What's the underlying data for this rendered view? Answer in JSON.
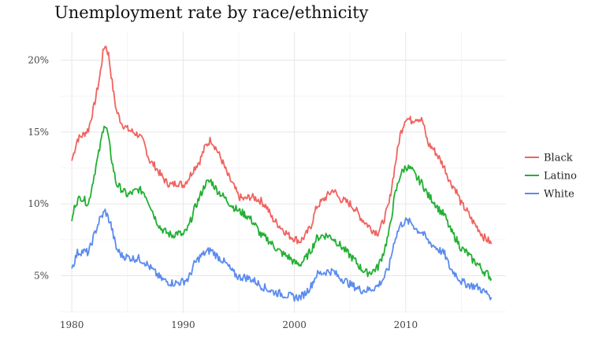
{
  "chart_data": {
    "type": "line",
    "title": "Unemployment rate by race/ethnicity",
    "xlabel": "",
    "ylabel": "",
    "xlim": [
      1979,
      2019
    ],
    "ylim": [
      2.4,
      22.0
    ],
    "x_ticks": [
      1980,
      1990,
      2000,
      2010
    ],
    "x_tick_labels": [
      "1980",
      "1990",
      "2000",
      "2010"
    ],
    "y_ticks": [
      5,
      10,
      15,
      20
    ],
    "y_tick_labels": [
      "5%",
      "10%",
      "15%",
      "20%"
    ],
    "grid": true,
    "legend_position": "right",
    "series": [
      {
        "name": "Black",
        "color": "#f0635f",
        "points": [
          [
            1980.0,
            13.0
          ],
          [
            1980.5,
            14.5
          ],
          [
            1981.0,
            14.8
          ],
          [
            1981.5,
            15.2
          ],
          [
            1982.0,
            16.8
          ],
          [
            1982.5,
            18.8
          ],
          [
            1982.8,
            20.5
          ],
          [
            1983.0,
            21.1
          ],
          [
            1983.3,
            20.4
          ],
          [
            1983.7,
            18.0
          ],
          [
            1984.0,
            16.5
          ],
          [
            1984.5,
            15.6
          ],
          [
            1985.0,
            15.2
          ],
          [
            1985.5,
            15.0
          ],
          [
            1986.0,
            14.8
          ],
          [
            1986.5,
            14.2
          ],
          [
            1987.0,
            13.0
          ],
          [
            1987.5,
            12.6
          ],
          [
            1988.0,
            12.0
          ],
          [
            1988.5,
            11.5
          ],
          [
            1989.0,
            11.3
          ],
          [
            1989.5,
            11.5
          ],
          [
            1990.0,
            11.3
          ],
          [
            1990.5,
            11.8
          ],
          [
            1991.0,
            12.5
          ],
          [
            1991.5,
            13.0
          ],
          [
            1992.0,
            14.0
          ],
          [
            1992.5,
            14.5
          ],
          [
            1993.0,
            13.8
          ],
          [
            1993.5,
            13.0
          ],
          [
            1994.0,
            12.0
          ],
          [
            1994.5,
            11.3
          ],
          [
            1995.0,
            10.5
          ],
          [
            1995.5,
            10.3
          ],
          [
            1996.0,
            10.5
          ],
          [
            1996.5,
            10.4
          ],
          [
            1997.0,
            10.2
          ],
          [
            1997.5,
            9.8
          ],
          [
            1998.0,
            9.0
          ],
          [
            1998.5,
            8.6
          ],
          [
            1999.0,
            8.2
          ],
          [
            1999.5,
            7.8
          ],
          [
            2000.0,
            7.6
          ],
          [
            2000.5,
            7.4
          ],
          [
            2001.0,
            7.8
          ],
          [
            2001.5,
            8.5
          ],
          [
            2002.0,
            9.8
          ],
          [
            2002.5,
            10.2
          ],
          [
            2003.0,
            10.6
          ],
          [
            2003.5,
            11.0
          ],
          [
            2004.0,
            10.4
          ],
          [
            2004.5,
            10.2
          ],
          [
            2005.0,
            10.0
          ],
          [
            2005.5,
            9.6
          ],
          [
            2006.0,
            9.0
          ],
          [
            2006.5,
            8.6
          ],
          [
            2007.0,
            8.2
          ],
          [
            2007.5,
            8.0
          ],
          [
            2008.0,
            8.8
          ],
          [
            2008.5,
            10.0
          ],
          [
            2009.0,
            12.5
          ],
          [
            2009.5,
            14.8
          ],
          [
            2010.0,
            16.0
          ],
          [
            2010.5,
            15.8
          ],
          [
            2011.0,
            16.0
          ],
          [
            2011.5,
            15.8
          ],
          [
            2012.0,
            14.2
          ],
          [
            2012.5,
            13.8
          ],
          [
            2013.0,
            13.2
          ],
          [
            2013.5,
            12.5
          ],
          [
            2014.0,
            11.5
          ],
          [
            2014.5,
            11.0
          ],
          [
            2015.0,
            10.0
          ],
          [
            2015.5,
            9.5
          ],
          [
            2016.0,
            8.8
          ],
          [
            2016.5,
            8.3
          ],
          [
            2017.0,
            7.7
          ],
          [
            2017.5,
            7.4
          ],
          [
            2017.7,
            7.2
          ]
        ]
      },
      {
        "name": "Latino",
        "color": "#22b033",
        "points": [
          [
            1980.0,
            8.8
          ],
          [
            1980.3,
            10.0
          ],
          [
            1980.8,
            10.5
          ],
          [
            1981.5,
            10.0
          ],
          [
            1982.0,
            12.0
          ],
          [
            1982.5,
            13.8
          ],
          [
            1982.9,
            15.6
          ],
          [
            1983.2,
            15.0
          ],
          [
            1983.6,
            13.0
          ],
          [
            1984.0,
            11.4
          ],
          [
            1984.5,
            11.0
          ],
          [
            1985.0,
            10.6
          ],
          [
            1985.5,
            10.8
          ],
          [
            1986.0,
            11.0
          ],
          [
            1986.5,
            10.8
          ],
          [
            1987.0,
            10.0
          ],
          [
            1987.5,
            9.0
          ],
          [
            1988.0,
            8.3
          ],
          [
            1988.5,
            8.0
          ],
          [
            1989.0,
            7.8
          ],
          [
            1989.5,
            8.0
          ],
          [
            1990.0,
            7.8
          ],
          [
            1990.5,
            8.4
          ],
          [
            1991.0,
            9.6
          ],
          [
            1991.5,
            10.5
          ],
          [
            1992.0,
            11.4
          ],
          [
            1992.5,
            11.6
          ],
          [
            1993.0,
            11.0
          ],
          [
            1993.5,
            10.6
          ],
          [
            1994.0,
            10.2
          ],
          [
            1994.5,
            9.8
          ],
          [
            1995.0,
            9.5
          ],
          [
            1995.5,
            9.3
          ],
          [
            1996.0,
            9.0
          ],
          [
            1996.5,
            8.5
          ],
          [
            1997.0,
            7.8
          ],
          [
            1997.5,
            7.6
          ],
          [
            1998.0,
            7.2
          ],
          [
            1998.5,
            6.8
          ],
          [
            1999.0,
            6.5
          ],
          [
            1999.5,
            6.3
          ],
          [
            2000.0,
            5.9
          ],
          [
            2000.5,
            5.8
          ],
          [
            2001.0,
            6.2
          ],
          [
            2001.5,
            6.8
          ],
          [
            2002.0,
            7.6
          ],
          [
            2002.5,
            7.8
          ],
          [
            2003.0,
            7.8
          ],
          [
            2003.5,
            7.6
          ],
          [
            2004.0,
            7.2
          ],
          [
            2004.5,
            6.8
          ],
          [
            2005.0,
            6.4
          ],
          [
            2005.5,
            6.0
          ],
          [
            2006.0,
            5.5
          ],
          [
            2006.5,
            5.2
          ],
          [
            2007.0,
            5.3
          ],
          [
            2007.5,
            5.6
          ],
          [
            2008.0,
            6.6
          ],
          [
            2008.5,
            8.0
          ],
          [
            2009.0,
            10.5
          ],
          [
            2009.5,
            12.0
          ],
          [
            2010.0,
            12.6
          ],
          [
            2010.5,
            12.4
          ],
          [
            2011.0,
            11.8
          ],
          [
            2011.5,
            11.4
          ],
          [
            2012.0,
            10.6
          ],
          [
            2012.5,
            10.2
          ],
          [
            2013.0,
            9.6
          ],
          [
            2013.5,
            9.2
          ],
          [
            2014.0,
            8.2
          ],
          [
            2014.5,
            7.6
          ],
          [
            2015.0,
            6.9
          ],
          [
            2015.5,
            6.6
          ],
          [
            2016.0,
            6.1
          ],
          [
            2016.5,
            5.8
          ],
          [
            2017.0,
            5.3
          ],
          [
            2017.4,
            5.1
          ],
          [
            2017.7,
            4.8
          ]
        ]
      },
      {
        "name": "White",
        "color": "#5a8bef",
        "points": [
          [
            1980.0,
            5.5
          ],
          [
            1980.5,
            6.6
          ],
          [
            1981.0,
            6.7
          ],
          [
            1981.5,
            6.6
          ],
          [
            1982.0,
            7.8
          ],
          [
            1982.5,
            8.9
          ],
          [
            1983.0,
            9.5
          ],
          [
            1983.5,
            8.6
          ],
          [
            1984.0,
            6.9
          ],
          [
            1984.5,
            6.4
          ],
          [
            1985.0,
            6.3
          ],
          [
            1985.5,
            6.2
          ],
          [
            1986.0,
            6.2
          ],
          [
            1986.5,
            6.0
          ],
          [
            1987.0,
            5.6
          ],
          [
            1987.5,
            5.2
          ],
          [
            1988.0,
            4.8
          ],
          [
            1988.5,
            4.6
          ],
          [
            1989.0,
            4.5
          ],
          [
            1989.5,
            4.5
          ],
          [
            1990.0,
            4.6
          ],
          [
            1990.5,
            4.8
          ],
          [
            1991.0,
            5.8
          ],
          [
            1991.5,
            6.3
          ],
          [
            1992.0,
            6.6
          ],
          [
            1992.5,
            6.8
          ],
          [
            1993.0,
            6.4
          ],
          [
            1993.5,
            6.1
          ],
          [
            1994.0,
            5.7
          ],
          [
            1994.5,
            5.2
          ],
          [
            1995.0,
            4.9
          ],
          [
            1995.5,
            4.9
          ],
          [
            1996.0,
            4.8
          ],
          [
            1996.5,
            4.6
          ],
          [
            1997.0,
            4.3
          ],
          [
            1997.5,
            4.1
          ],
          [
            1998.0,
            3.9
          ],
          [
            1998.5,
            3.8
          ],
          [
            1999.0,
            3.7
          ],
          [
            1999.5,
            3.6
          ],
          [
            2000.0,
            3.5
          ],
          [
            2000.5,
            3.5
          ],
          [
            2001.0,
            3.8
          ],
          [
            2001.5,
            4.3
          ],
          [
            2002.0,
            5.1
          ],
          [
            2002.5,
            5.2
          ],
          [
            2003.0,
            5.3
          ],
          [
            2003.5,
            5.3
          ],
          [
            2004.0,
            4.9
          ],
          [
            2004.5,
            4.7
          ],
          [
            2005.0,
            4.4
          ],
          [
            2005.5,
            4.2
          ],
          [
            2006.0,
            4.0
          ],
          [
            2006.5,
            4.0
          ],
          [
            2007.0,
            4.1
          ],
          [
            2007.5,
            4.3
          ],
          [
            2008.0,
            4.8
          ],
          [
            2008.5,
            5.6
          ],
          [
            2009.0,
            7.5
          ],
          [
            2009.5,
            8.5
          ],
          [
            2010.0,
            8.8
          ],
          [
            2010.5,
            8.7
          ],
          [
            2011.0,
            8.2
          ],
          [
            2011.5,
            8.0
          ],
          [
            2012.0,
            7.4
          ],
          [
            2012.5,
            7.1
          ],
          [
            2013.0,
            6.8
          ],
          [
            2013.5,
            6.5
          ],
          [
            2014.0,
            5.5
          ],
          [
            2014.5,
            5.1
          ],
          [
            2015.0,
            4.6
          ],
          [
            2015.5,
            4.4
          ],
          [
            2016.0,
            4.3
          ],
          [
            2016.5,
            4.2
          ],
          [
            2017.0,
            3.9
          ],
          [
            2017.5,
            3.7
          ],
          [
            2017.7,
            3.5
          ]
        ]
      }
    ]
  }
}
